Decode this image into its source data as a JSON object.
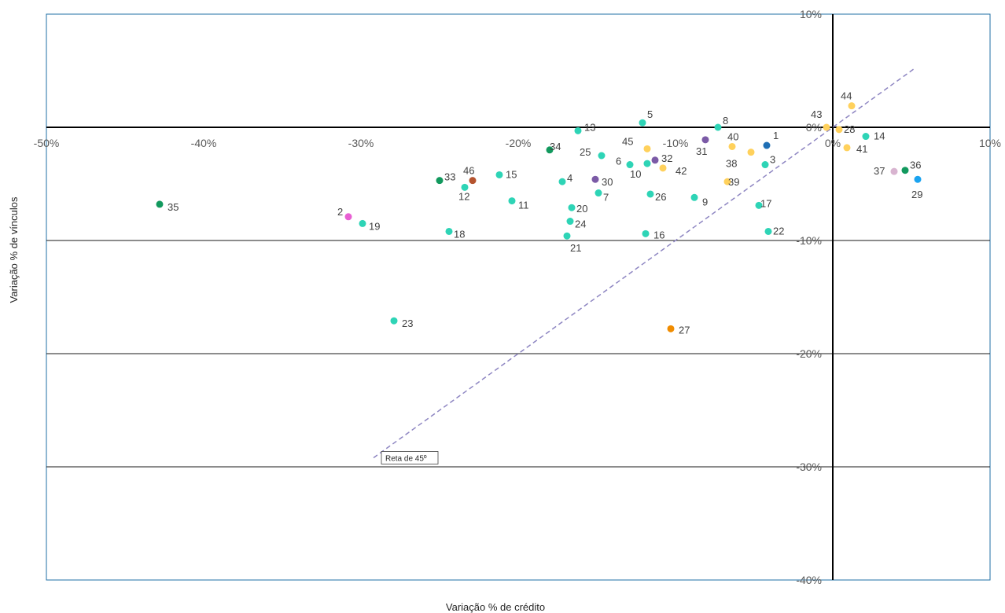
{
  "chart_data": {
    "type": "scatter",
    "title": "",
    "xlabel": "Variação % de crédito",
    "ylabel": "Variação % de vínculos",
    "xlim": [
      -50,
      10
    ],
    "ylim": [
      -40,
      10
    ],
    "x_ticks": [
      {
        "value": -50,
        "label": "-50%"
      },
      {
        "value": -40,
        "label": "-40%"
      },
      {
        "value": -30,
        "label": "-30%"
      },
      {
        "value": -20,
        "label": "-20%"
      },
      {
        "value": -10,
        "label": "-10%"
      },
      {
        "value": 0,
        "label": "0%"
      },
      {
        "value": 10,
        "label": "10%"
      }
    ],
    "y_ticks": [
      {
        "value": 10,
        "label": "10%"
      },
      {
        "value": 0,
        "label": "0%"
      },
      {
        "value": -10,
        "label": "-10%"
      },
      {
        "value": -20,
        "label": "-20%"
      },
      {
        "value": -30,
        "label": "-30%"
      },
      {
        "value": -40,
        "label": "-40%"
      }
    ],
    "gridlines_y": true,
    "legend": "none",
    "reference_line": {
      "label": "Reta de 45º",
      "from": [
        -29.2,
        -29.2
      ],
      "to": [
        5.2,
        5.2
      ],
      "color": "#8e86c2",
      "style": "dashed"
    },
    "points": [
      {
        "label": "1",
        "x": -4.2,
        "y": -1.6,
        "color": "#1f6fb5"
      },
      {
        "label": "2",
        "x": -30.8,
        "y": -7.9,
        "color": "#e85fd3"
      },
      {
        "label": "3",
        "x": -4.3,
        "y": -3.3,
        "color": "#2ed4b6"
      },
      {
        "label": "4",
        "x": -17.2,
        "y": -4.8,
        "color": "#2ed4b6"
      },
      {
        "label": "5",
        "x": -12.1,
        "y": 0.4,
        "color": "#2ed4b6"
      },
      {
        "label": "6",
        "x": -12.9,
        "y": -3.3,
        "color": "#2ed4b6"
      },
      {
        "label": "7",
        "x": -14.9,
        "y": -5.8,
        "color": "#2ed4b6"
      },
      {
        "label": "8",
        "x": -7.3,
        "y": 0.0,
        "color": "#2ed4b6"
      },
      {
        "label": "9",
        "x": -8.8,
        "y": -6.2,
        "color": "#2ed4b6"
      },
      {
        "label": "10",
        "x": -11.8,
        "y": -3.2,
        "color": "#2ed4b6"
      },
      {
        "label": "11",
        "x": -20.4,
        "y": -6.5,
        "color": "#2ed4b6"
      },
      {
        "label": "12",
        "x": -23.4,
        "y": -5.3,
        "color": "#2ed4b6"
      },
      {
        "label": "13",
        "x": -16.2,
        "y": -0.3,
        "color": "#2ed4b6"
      },
      {
        "label": "14",
        "x": 2.1,
        "y": -0.8,
        "color": "#2ed4b6"
      },
      {
        "label": "15",
        "x": -21.2,
        "y": -4.2,
        "color": "#2ed4b6"
      },
      {
        "label": "16",
        "x": -11.9,
        "y": -9.4,
        "color": "#2ed4b6"
      },
      {
        "label": "17",
        "x": -4.7,
        "y": -6.9,
        "color": "#2ed4b6"
      },
      {
        "label": "18",
        "x": -24.4,
        "y": -9.2,
        "color": "#2ed4b6"
      },
      {
        "label": "19",
        "x": -29.9,
        "y": -8.5,
        "color": "#2ed4b6"
      },
      {
        "label": "20",
        "x": -16.6,
        "y": -7.1,
        "color": "#2ed4b6"
      },
      {
        "label": "21",
        "x": -16.9,
        "y": -9.6,
        "color": "#2ed4b6"
      },
      {
        "label": "22",
        "x": -4.1,
        "y": -9.2,
        "color": "#2ed4b6"
      },
      {
        "label": "23",
        "x": -27.9,
        "y": -17.1,
        "color": "#2ed4b6"
      },
      {
        "label": "24",
        "x": -16.7,
        "y": -8.3,
        "color": "#2ed4b6"
      },
      {
        "label": "25",
        "x": -14.7,
        "y": -2.5,
        "color": "#2ed4b6"
      },
      {
        "label": "26",
        "x": -11.6,
        "y": -5.9,
        "color": "#2ed4b6"
      },
      {
        "label": "27",
        "x": -10.3,
        "y": -17.8,
        "color": "#f08c00"
      },
      {
        "label": "28",
        "x": 0.4,
        "y": -0.2,
        "color": "#ffd15c"
      },
      {
        "label": "29",
        "x": 5.4,
        "y": -4.6,
        "color": "#1aa3f0"
      },
      {
        "label": "30",
        "x": -15.1,
        "y": -4.6,
        "color": "#7b5aa6"
      },
      {
        "label": "31",
        "x": -8.1,
        "y": -1.1,
        "color": "#7b5aa6"
      },
      {
        "label": "32",
        "x": -11.3,
        "y": -2.9,
        "color": "#7b5aa6"
      },
      {
        "label": "33",
        "x": -25.0,
        "y": -4.7,
        "color": "#12995e"
      },
      {
        "label": "34",
        "x": -18.0,
        "y": -2.0,
        "color": "#12995e"
      },
      {
        "label": "35",
        "x": -42.8,
        "y": -6.8,
        "color": "#12995e"
      },
      {
        "label": "36",
        "x": 4.6,
        "y": -3.8,
        "color": "#12995e"
      },
      {
        "label": "37",
        "x": 3.9,
        "y": -3.9,
        "color": "#d8b4d0"
      },
      {
        "label": "38",
        "x": -5.2,
        "y": -2.2,
        "color": "#ffd15c"
      },
      {
        "label": "39",
        "x": -6.7,
        "y": -4.8,
        "color": "#ffd15c"
      },
      {
        "label": "40",
        "x": -6.4,
        "y": -1.7,
        "color": "#ffd15c"
      },
      {
        "label": "41",
        "x": 0.9,
        "y": -1.8,
        "color": "#ffd15c"
      },
      {
        "label": "42",
        "x": -10.8,
        "y": -3.6,
        "color": "#ffd15c"
      },
      {
        "label": "43",
        "x": -0.4,
        "y": 0.0,
        "color": "#ffd15c"
      },
      {
        "label": "44",
        "x": 1.2,
        "y": 1.9,
        "color": "#ffd15c"
      },
      {
        "label": "45",
        "x": -11.8,
        "y": -1.9,
        "color": "#ffd15c"
      },
      {
        "label": "46",
        "x": -22.9,
        "y": -4.7,
        "color": "#b5542f"
      }
    ]
  }
}
